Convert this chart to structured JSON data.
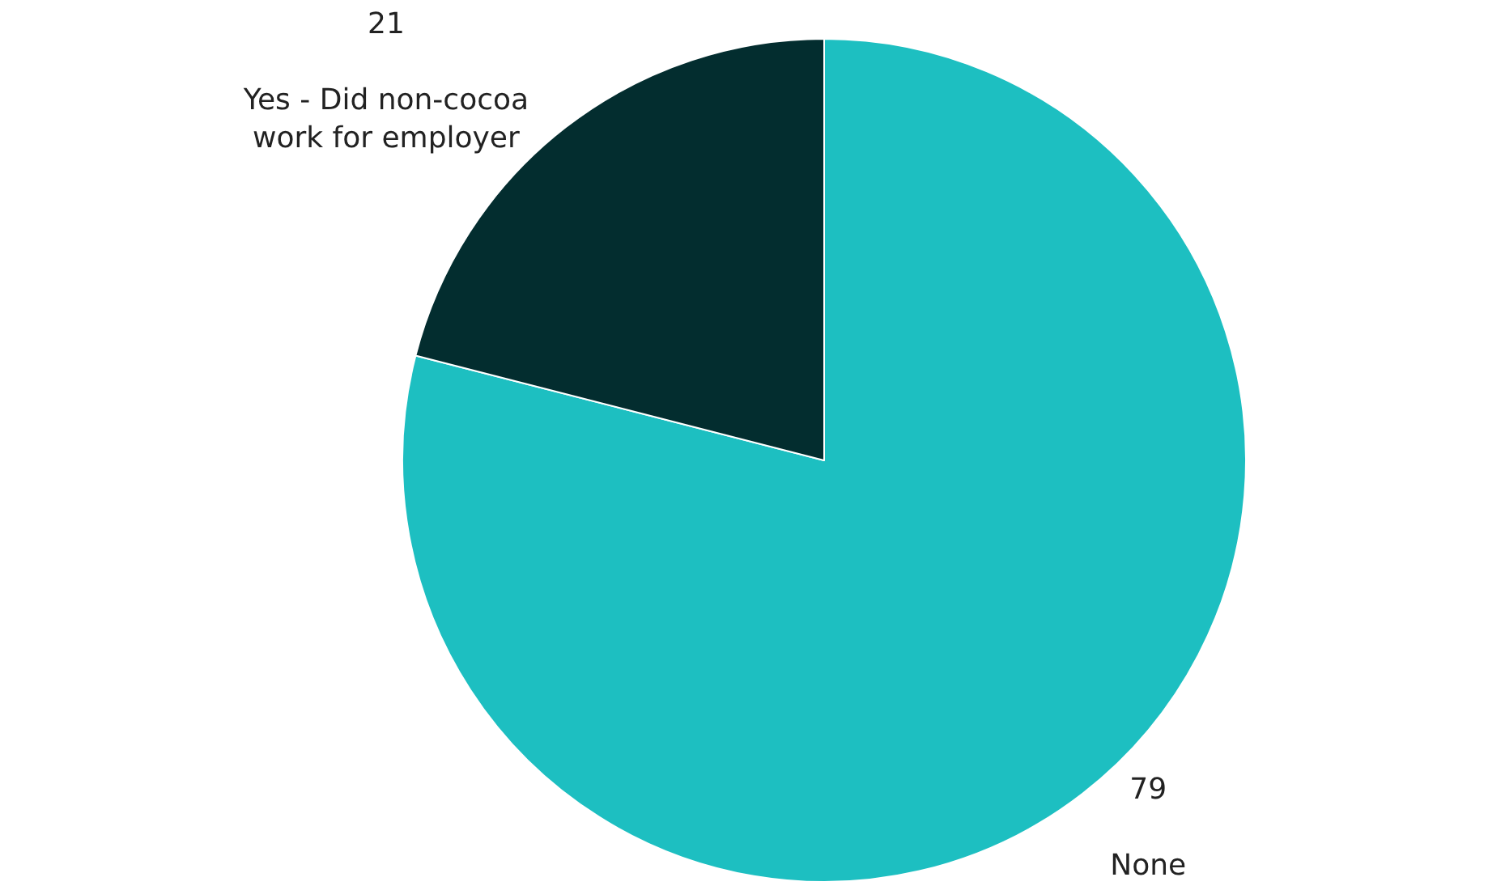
{
  "chart_data": {
    "type": "pie",
    "categories": [
      "None",
      "Yes - Did non-cocoa work for employer"
    ],
    "values": [
      79,
      21
    ],
    "colors": [
      "#1dbfc1",
      "#032d2f"
    ],
    "data_labels": true,
    "legend": false
  }
}
